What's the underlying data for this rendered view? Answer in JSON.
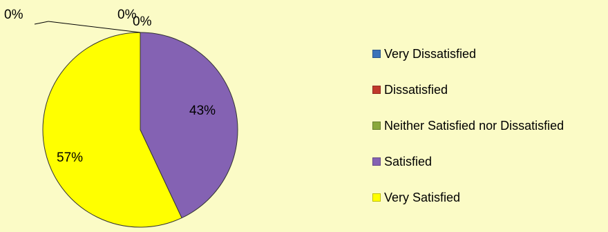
{
  "chart_data": {
    "type": "pie",
    "title": "",
    "categories": [
      "Very Dissatisfied",
      "Dissatisfied",
      "Neither Satisfied nor Dissatisfied",
      "Satisfied",
      "Very Satisfied"
    ],
    "values": [
      0,
      0,
      0,
      43,
      57
    ],
    "data_labels": [
      "0%",
      "0%",
      "0%",
      "43%",
      "57%"
    ],
    "colors": [
      "#3b73b9",
      "#c0392b",
      "#8aa83c",
      "#8462b3",
      "#ffff00"
    ],
    "legend_position": "right"
  }
}
